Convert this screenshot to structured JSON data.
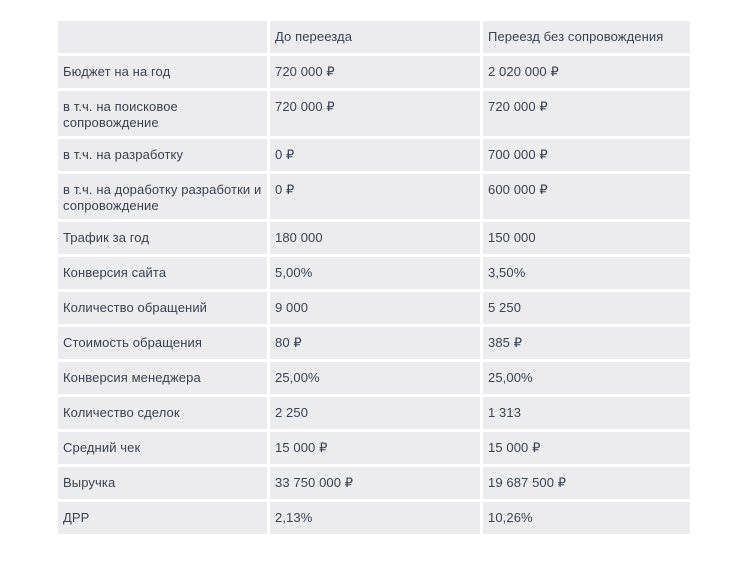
{
  "table": {
    "headers": [
      "",
      "До переезда",
      "Переезд без сопровождения"
    ],
    "rows": [
      {
        "label": "Бюджет на на год",
        "before": "720 000 ₽",
        "after": "2 020 000 ₽"
      },
      {
        "label": "в т.ч. на поисковое сопровождение",
        "before": "720 000 ₽",
        "after": "720 000 ₽"
      },
      {
        "label": "в т.ч. на разработку",
        "before": "0 ₽",
        "after": "700 000 ₽"
      },
      {
        "label": "в т.ч. на доработку разработки и сопровождение",
        "before": "0 ₽",
        "after": "600 000 ₽"
      },
      {
        "label": "Трафик за год",
        "before": "180 000",
        "after": "150 000"
      },
      {
        "label": "Конверсия сайта",
        "before": "5,00%",
        "after": "3,50%"
      },
      {
        "label": "Количество обращений",
        "before": "9 000",
        "after": "5 250"
      },
      {
        "label": "Стоимость обращения",
        "before": "80 ₽",
        "after": "385 ₽"
      },
      {
        "label": "Конверсия менеджера",
        "before": "25,00%",
        "after": "25,00%"
      },
      {
        "label": "Количество сделок",
        "before": "2 250",
        "after": "1 313"
      },
      {
        "label": "Средний чек",
        "before": "15 000 ₽",
        "after": "15 000 ₽"
      },
      {
        "label": "Выручка",
        "before": "33 750 000 ₽",
        "after": "19 687 500 ₽"
      },
      {
        "label": "ДРР",
        "before": "2,13%",
        "after": "10,26%"
      }
    ]
  }
}
